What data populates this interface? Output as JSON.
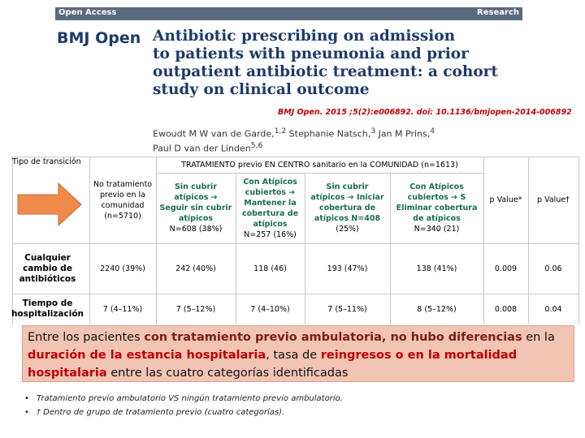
{
  "header": {
    "left": "Open Access",
    "right": "Research",
    "logo": "BMJ Open",
    "title_lines": [
      "Antibiotic prescribing on admission",
      "to patients with pneumonia and prior",
      "outpatient antibiotic treatment: a cohort",
      "study on clinical outcome"
    ],
    "citation": "BMJ Open. 2015 ;5(2):e006892. doi: 10.1136/bmjopen-2014-006892",
    "author_lines": [
      [
        {
          "name": "Ewoudt M W van de Garde,",
          "sup": "1,2"
        },
        {
          "name": " Stephanie Natsch,",
          "sup": "3"
        },
        {
          "name": " Jan M Prins,",
          "sup": "4"
        }
      ],
      [
        {
          "name": "Paul D van der Linden",
          "sup": "5,6"
        }
      ]
    ]
  },
  "table": {
    "corner": "Tipo de transición",
    "group_header": "TRATAMIENTO previo EN CENTRO sanitario en la COMUNIDAD (n=1613)",
    "columns": [
      [
        "No tratamiento",
        "previo en la",
        "comunidad",
        "(n=5710)"
      ],
      [
        "Sin cubrir",
        "atípicos ➔",
        "Seguir sin cubrir",
        "atípicos",
        "N=608 (38%)"
      ],
      [
        "Con Atípicos",
        "cubiertos ➔",
        "Mantener la",
        "cobertura de",
        "atípicos",
        "N=257 (16%)"
      ],
      [
        "Sin cubrir",
        "atípicos ➔ Iniciar",
        "cobertura de",
        "atípicos N=408",
        "(25%)"
      ],
      [
        "Con Atípicos",
        "cubiertos ➔ S",
        "Eliminar cobertura",
        "de atípicos",
        "N=340 (21)"
      ],
      [
        "p Value*"
      ],
      [
        "p Value†"
      ]
    ],
    "rows": [
      {
        "label": [
          "Cualquier",
          "cambio de",
          "antibióticos"
        ],
        "cells": [
          "2240 (39%)",
          "242 (40%)",
          "118 (46)",
          "193 (47%)",
          "138 (41%)",
          "0.009",
          "0.06"
        ]
      },
      {
        "label": [
          "Tiempo de",
          "hospitalización"
        ],
        "cells": [
          "7 (4–11%)",
          "7 (5–12%)",
          "7 (4–10%)",
          "7 (5–11%)",
          "8 (5–12%)",
          "0.008",
          "0.04"
        ]
      }
    ]
  },
  "callout": [
    {
      "text": "Entre los pacientes ",
      "style": "plain"
    },
    {
      "text": "con tratamiento previo ambulatoria, no hubo diferencias",
      "style": "bold"
    },
    {
      "text": " en la ",
      "style": "plain"
    },
    {
      "text": "duración de la estancia hospitalaria",
      "style": "red"
    },
    {
      "text": ", tasa de ",
      "style": "plain"
    },
    {
      "text": "reingresos o en la mortalidad hospitalaria",
      "style": "red"
    },
    {
      "text": " entre las cuatro categorías identificadas",
      "style": "plain"
    }
  ],
  "footnotes": [
    "Tratamiento previo ambulatorio VS ningún tratamiento previo ambulatorio.",
    "† Dentro de grupo de tratamiento previo (cuatro categorías)."
  ]
}
